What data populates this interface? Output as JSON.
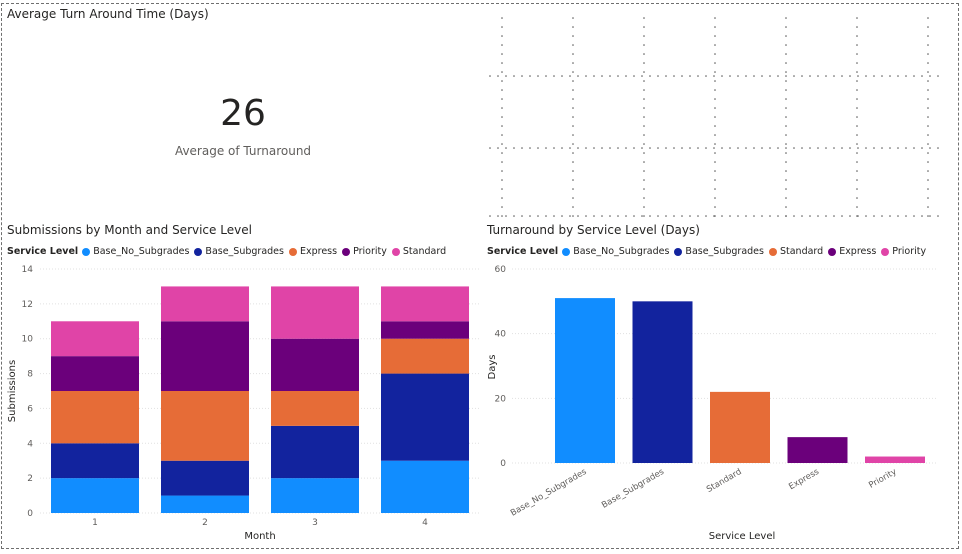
{
  "card": {
    "title": "Average Turn Around Time (Days)",
    "value": "26",
    "label": "Average of Turnaround"
  },
  "chart_data": [
    {
      "type": "bar",
      "stacked": true,
      "title": "Submissions by Month and Service Level",
      "xlabel": "Month",
      "ylabel": "Submissions",
      "ylim": [
        0,
        14
      ],
      "yticks": [
        0,
        2,
        4,
        6,
        8,
        10,
        12,
        14
      ],
      "grid": true,
      "legend_title": "Service Level",
      "legend_position": "top-left",
      "categories": [
        "1",
        "2",
        "3",
        "4"
      ],
      "series": [
        {
          "name": "Base_No_Subgrades",
          "color": "#118DFF",
          "values": [
            2,
            1,
            2,
            3
          ]
        },
        {
          "name": "Base_Subgrades",
          "color": "#12239E",
          "values": [
            2,
            2,
            3,
            5
          ]
        },
        {
          "name": "Express",
          "color": "#E66C37",
          "values": [
            3,
            4,
            2,
            2
          ]
        },
        {
          "name": "Priority",
          "color": "#6B007B",
          "values": [
            2,
            4,
            3,
            1
          ]
        },
        {
          "name": "Standard",
          "color": "#E044A7",
          "values": [
            2,
            2,
            3,
            2
          ]
        }
      ]
    },
    {
      "type": "bar",
      "title": "Turnaround by Service Level (Days)",
      "xlabel": "Service Level",
      "ylabel": "Days",
      "ylim": [
        0,
        60
      ],
      "yticks": [
        0,
        20,
        40,
        60
      ],
      "grid": true,
      "legend_title": "Service Level",
      "legend_position": "top-left",
      "categories": [
        "Base_No_Subgrades",
        "Base_Subgrades",
        "Standard",
        "Express",
        "Priority"
      ],
      "values": [
        51,
        50,
        22,
        8,
        2
      ],
      "colors": [
        "#118DFF",
        "#12239E",
        "#E66C37",
        "#6B007B",
        "#E044A7"
      ],
      "legend": [
        {
          "name": "Base_No_Subgrades",
          "color": "#118DFF"
        },
        {
          "name": "Base_Subgrades",
          "color": "#12239E"
        },
        {
          "name": "Standard",
          "color": "#E66C37"
        },
        {
          "name": "Express",
          "color": "#6B007B"
        },
        {
          "name": "Priority",
          "color": "#E044A7"
        }
      ]
    }
  ]
}
